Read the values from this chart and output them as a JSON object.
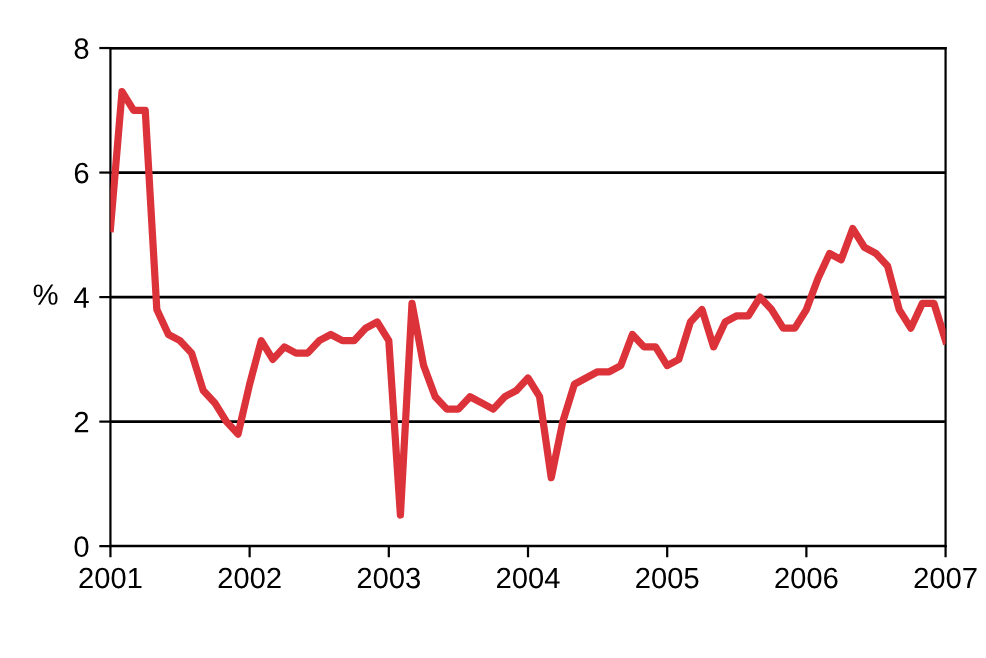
{
  "chart_data": {
    "type": "line",
    "ylabel": "%",
    "x": [
      2001.0,
      2001.0833,
      2001.1667,
      2001.25,
      2001.3333,
      2001.4167,
      2001.5,
      2001.5833,
      2001.6667,
      2001.75,
      2001.8333,
      2001.9167,
      2002.0,
      2002.0833,
      2002.1667,
      2002.25,
      2002.3333,
      2002.4167,
      2002.5,
      2002.5833,
      2002.6667,
      2002.75,
      2002.8333,
      2002.9167,
      2003.0,
      2003.0833,
      2003.1667,
      2003.25,
      2003.3333,
      2003.4167,
      2003.5,
      2003.5833,
      2003.6667,
      2003.75,
      2003.8333,
      2003.9167,
      2004.0,
      2004.0833,
      2004.1667,
      2004.25,
      2004.3333,
      2004.4167,
      2004.5,
      2004.5833,
      2004.6667,
      2004.75,
      2004.8333,
      2004.9167,
      2005.0,
      2005.0833,
      2005.1667,
      2005.25,
      2005.3333,
      2005.4167,
      2005.5,
      2005.5833,
      2005.6667,
      2005.75,
      2005.8333,
      2005.9167,
      2006.0,
      2006.0833,
      2006.1667,
      2006.25,
      2006.3333,
      2006.4167,
      2006.5,
      2006.5833,
      2006.6667,
      2006.75,
      2006.8333,
      2006.9167,
      2007.0
    ],
    "series": [
      {
        "color": "#dc323a",
        "values": [
          5.1,
          7.3,
          7.0,
          7.0,
          3.8,
          3.4,
          3.3,
          3.1,
          2.5,
          2.3,
          2.0,
          1.8,
          2.6,
          3.3,
          3.0,
          3.2,
          3.1,
          3.1,
          3.3,
          3.4,
          3.3,
          3.3,
          3.5,
          3.6,
          3.3,
          0.5,
          3.9,
          2.9,
          2.4,
          2.2,
          2.2,
          2.4,
          2.3,
          2.2,
          2.4,
          2.5,
          2.7,
          2.4,
          1.1,
          2.0,
          2.6,
          2.7,
          2.8,
          2.8,
          2.9,
          3.4,
          3.2,
          3.2,
          2.9,
          3.0,
          3.6,
          3.8,
          3.2,
          3.6,
          3.7,
          3.7,
          4.0,
          3.8,
          3.5,
          3.5,
          3.8,
          4.3,
          4.7,
          4.6,
          5.1,
          4.8,
          4.7,
          4.5,
          3.8,
          3.5,
          3.9,
          3.9,
          3.3
        ]
      }
    ],
    "xlim": [
      2001,
      2007
    ],
    "ylim": [
      0,
      8
    ],
    "xticks": [
      2001,
      2002,
      2003,
      2004,
      2005,
      2006,
      2007
    ],
    "yticks": [
      0,
      2,
      4,
      6,
      8
    ],
    "grid": "y",
    "legend": false,
    "marker": "none",
    "line_style": "solid"
  }
}
